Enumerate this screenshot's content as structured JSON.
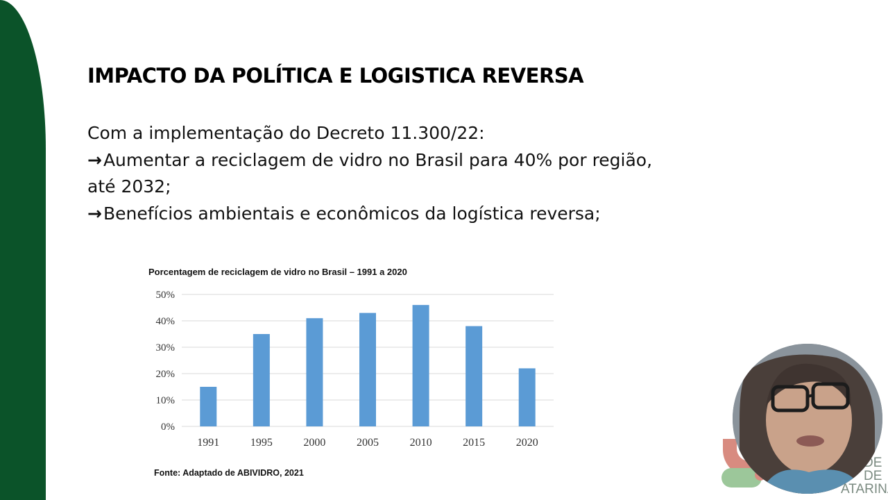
{
  "slide": {
    "title": "IMPACTO DA POLÍTICA E LOGISTICA REVERSA",
    "lines": [
      "Com a implementação do Decreto 11.300/22:",
      "Aumentar a reciclagem de vidro no Brasil para 40% por região,",
      "até 2032;",
      "Benefícios ambientais e econômicos da logística reversa;"
    ],
    "arrow_glyph": "→",
    "source": "Fonte: Adaptado de ABIVIDRO, 2021"
  },
  "logo": {
    "text_lines": [
      "DE",
      "DE",
      "ATARINA"
    ]
  },
  "colors": {
    "band": "#0b5329",
    "bar": "#5b9bd5",
    "logo_red": "#d88b80",
    "logo_green": "#9cc79a"
  },
  "chart_data": {
    "type": "bar",
    "title": "Porcentagem de reciclagem de vidro no Brasil – 1991 a 2020",
    "categories": [
      "1991",
      "1995",
      "2000",
      "2005",
      "2010",
      "2015",
      "2020"
    ],
    "values": [
      15,
      35,
      41,
      43,
      46,
      38,
      22
    ],
    "ylim": [
      0,
      50
    ],
    "yticks": [
      "0%",
      "10%",
      "20%",
      "30%",
      "40%",
      "50%"
    ],
    "grid": true,
    "legend": "none"
  }
}
